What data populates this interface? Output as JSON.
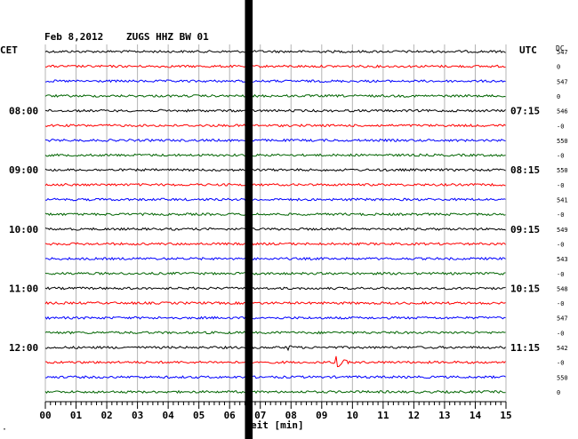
{
  "header": {
    "date": "Feb 8,2012",
    "station": "ZUGS HHZ BW 01"
  },
  "labels": {
    "left_timezone": "CET",
    "right_timezone": "UTC",
    "dc_label": "DC",
    "xlabel_suffix": "eit [min]",
    "corner_mark": "·"
  },
  "colors": {
    "black": "#000000",
    "red": "#ff0000",
    "blue": "#0000ff",
    "green": "#006400",
    "grid": "#b4b4b4"
  },
  "chart_data": {
    "type": "line",
    "title": "Feb 8,2012   ZUGS HHZ BW 01",
    "xlabel": "Zeit [min]",
    "xlim": [
      0,
      15
    ],
    "x_ticks": [
      "00",
      "01",
      "02",
      "03",
      "04",
      "05",
      "06",
      "07",
      "08",
      "09",
      "10",
      "11",
      "12",
      "13",
      "14",
      "15"
    ],
    "trace_color_cycle": [
      "black",
      "red",
      "blue",
      "green"
    ],
    "trace_count": 24,
    "hour_labels_left": [
      {
        "label": "08:00",
        "trace_index": 4
      },
      {
        "label": "09:00",
        "trace_index": 8
      },
      {
        "label": "10:00",
        "trace_index": 12
      },
      {
        "label": "11:00",
        "trace_index": 16
      },
      {
        "label": "12:00",
        "trace_index": 20
      }
    ],
    "hour_labels_right": [
      {
        "label": "07:15",
        "trace_index": 4
      },
      {
        "label": "08:15",
        "trace_index": 8
      },
      {
        "label": "09:15",
        "trace_index": 12
      },
      {
        "label": "10:15",
        "trace_index": 16
      },
      {
        "label": "11:15",
        "trace_index": 20
      }
    ],
    "dc_values": [
      "547",
      "0",
      "547",
      "0",
      "546",
      "-0",
      "550",
      "-0",
      "550",
      "-0",
      "541",
      "-0",
      "549",
      "-0",
      "543",
      "-0",
      "548",
      "-0",
      "547",
      "-0",
      "542",
      "-0",
      "550",
      "0"
    ],
    "events": [
      {
        "trace_index": 20,
        "minute": 7.8,
        "amplitude": "small"
      },
      {
        "trace_index": 21,
        "minute": 9.4,
        "amplitude": "large"
      }
    ],
    "data_gap": {
      "minute_start": 6.5,
      "minute_end": 6.75
    }
  }
}
